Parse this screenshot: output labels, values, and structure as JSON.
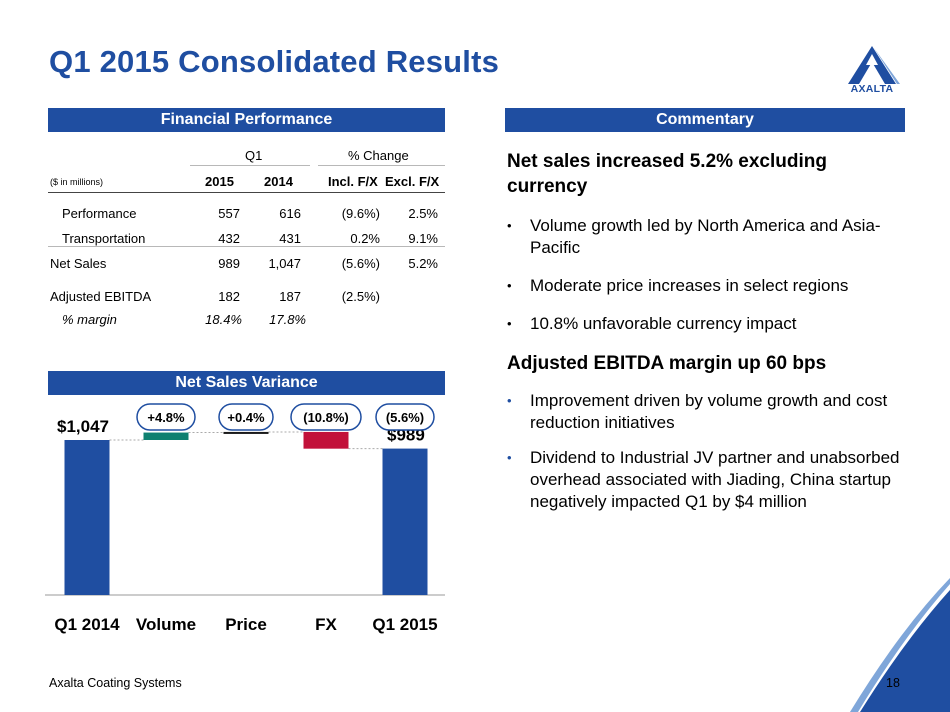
{
  "title": "Q1 2015 Consolidated Results",
  "logo": {
    "text": "AXALTA",
    "brand_color": "#1f4ea1"
  },
  "financial": {
    "section_title": "Financial Performance",
    "q1_label": "Q1",
    "pct_change_label": "% Change",
    "units": "($ in millions)",
    "col_2015": "2015",
    "col_2014": "2014",
    "col_incl": "Incl. F/X",
    "col_excl": "Excl. F/X",
    "rows": [
      {
        "label": "Performance",
        "v2015": "557",
        "v2014": "616",
        "incl": "(9.6%)",
        "excl": "2.5%"
      },
      {
        "label": "Transportation",
        "v2015": "432",
        "v2014": "431",
        "incl": "0.2%",
        "excl": "9.1%"
      },
      {
        "label": "Net Sales",
        "v2015": "989",
        "v2014": "1,047",
        "incl": "(5.6%)",
        "excl": "5.2%"
      },
      {
        "label": "Adjusted EBITDA",
        "v2015": "182",
        "v2014": "187",
        "incl": "(2.5%)",
        "excl": ""
      },
      {
        "label": "% margin",
        "v2015": "18.4%",
        "v2014": "17.8%",
        "incl": "",
        "excl": ""
      }
    ]
  },
  "commentary": {
    "section_title": "Commentary",
    "heading1": "Net sales increased 5.2% excluding currency",
    "bullets1": [
      "Volume growth led by North America and Asia-Pacific",
      "Moderate price increases in select regions",
      "10.8% unfavorable currency impact"
    ],
    "heading2": "Adjusted EBITDA margin up 60 bps",
    "bullets2": [
      "Improvement driven by volume growth and cost reduction initiatives",
      "Dividend to Industrial JV partner and unabsorbed overhead associated with Jiading, China startup negatively impacted Q1 by $4 million"
    ],
    "bullet_char": "•"
  },
  "variance": {
    "section_title": "Net Sales Variance"
  },
  "chart_data": {
    "type": "bar",
    "subtype": "waterfall",
    "title": "Net Sales Variance",
    "categories": [
      "Q1 2014",
      "Volume",
      "Price",
      "FX",
      "Q1 2015"
    ],
    "start_value": 1047,
    "end_value": 989,
    "changes_pct": [
      4.8,
      0.4,
      -10.8
    ],
    "bubble_labels": [
      "+4.8%",
      "+0.4%",
      "(10.8%)",
      "(5.6%)"
    ],
    "value_labels": [
      "$1,047",
      "$989"
    ],
    "colors": {
      "total": "#1f4ea1",
      "increase": "#0e8070",
      "decrease": "#c2113a",
      "price": "#1a1a1a"
    }
  },
  "footer": {
    "company": "Axalta Coating Systems",
    "page": "18"
  }
}
